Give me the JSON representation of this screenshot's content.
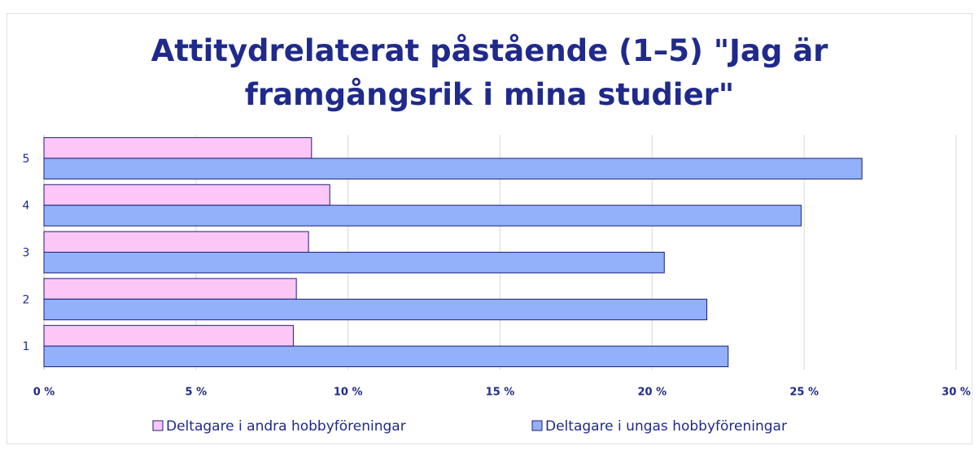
{
  "chart_data": {
    "type": "hbar",
    "title": "Attitydrelaterat påstående (1–5) \"Jag är framgångsrik i mina studier\"",
    "categories": [
      "1",
      "2",
      "3",
      "4",
      "5"
    ],
    "series": [
      {
        "name": "Deltagare i andra hobbyföreningar",
        "color": "#fcc6f7",
        "values": [
          8.2,
          8.3,
          8.7,
          9.4,
          8.8
        ]
      },
      {
        "name": "Deltagare i ungas hobbyföreningar",
        "color": "#92b1fa",
        "values": [
          22.5,
          21.8,
          20.4,
          24.9,
          26.9
        ]
      }
    ],
    "xlim": [
      0,
      30
    ],
    "xticks": [
      {
        "value": 0,
        "label": "0 %"
      },
      {
        "value": 5,
        "label": "5 %"
      },
      {
        "value": 10,
        "label": "10 %"
      },
      {
        "value": 15,
        "label": "15 %"
      },
      {
        "value": 20,
        "label": "20 %"
      },
      {
        "value": 25,
        "label": "25 %"
      },
      {
        "value": 30,
        "label": "30 %"
      }
    ],
    "grid": true,
    "legend": "bottom"
  }
}
